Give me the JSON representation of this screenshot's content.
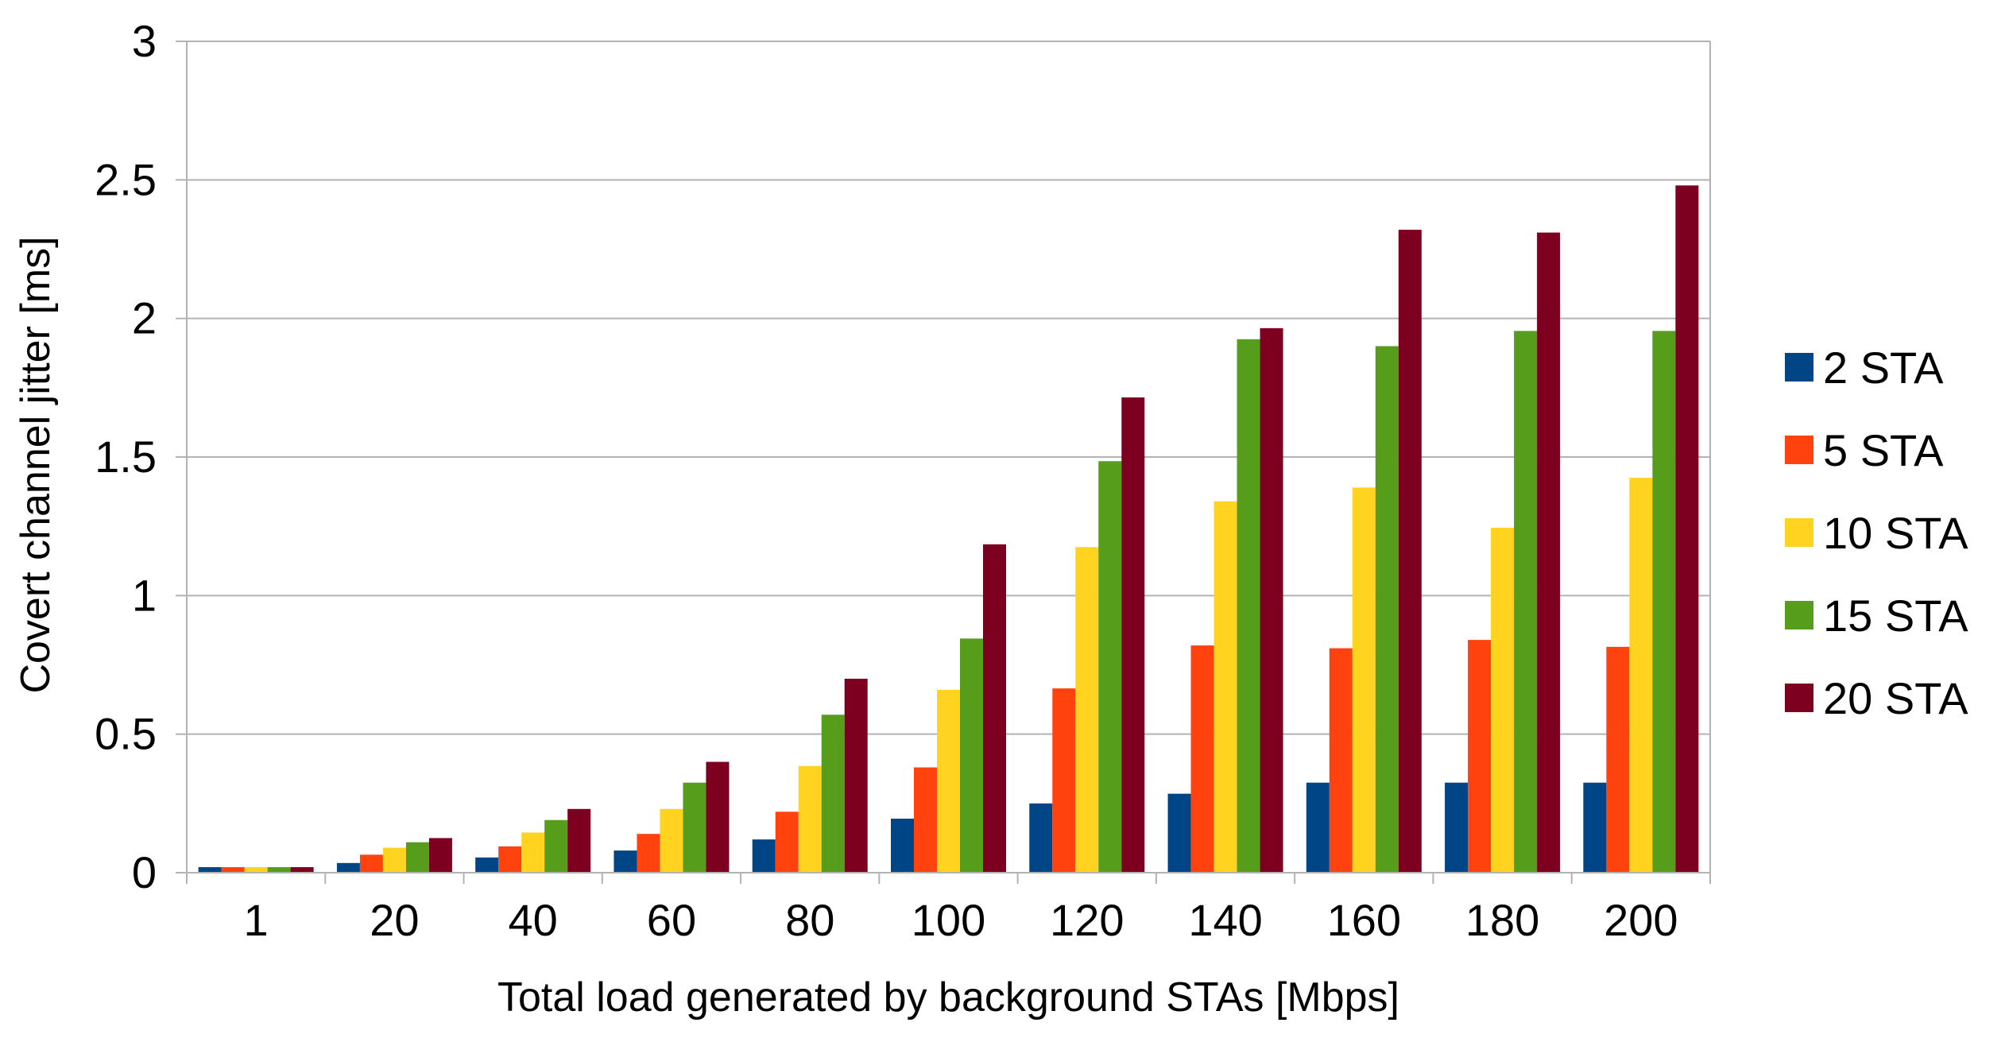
{
  "chart_data": {
    "type": "bar",
    "title": "",
    "xlabel": "Total load generated by background STAs [Mbps]",
    "ylabel": "Covert channel jitter [ms]",
    "ylim": [
      0,
      3
    ],
    "yticks": [
      "0",
      "0.5",
      "1",
      "1.5",
      "2",
      "2.5",
      "3"
    ],
    "grid": "horizontal",
    "legend_position": "right",
    "categories": [
      "1",
      "20",
      "40",
      "60",
      "80",
      "100",
      "120",
      "140",
      "160",
      "180",
      "200"
    ],
    "series": [
      {
        "name": "2 STA",
        "color": "#004586",
        "values": [
          0.02,
          0.035,
          0.055,
          0.08,
          0.12,
          0.195,
          0.25,
          0.285,
          0.325,
          0.325,
          0.325
        ]
      },
      {
        "name": "5 STA",
        "color": "#ff420e",
        "values": [
          0.02,
          0.065,
          0.095,
          0.14,
          0.22,
          0.38,
          0.665,
          0.82,
          0.81,
          0.84,
          0.815
        ]
      },
      {
        "name": "10 STA",
        "color": "#ffd320",
        "values": [
          0.02,
          0.09,
          0.145,
          0.23,
          0.385,
          0.66,
          1.175,
          1.34,
          1.39,
          1.245,
          1.425
        ]
      },
      {
        "name": "15 STA",
        "color": "#579d1c",
        "values": [
          0.02,
          0.11,
          0.19,
          0.325,
          0.57,
          0.845,
          1.485,
          1.925,
          1.9,
          1.955,
          1.955
        ]
      },
      {
        "name": "20 STA",
        "color": "#7e0021",
        "values": [
          0.02,
          0.125,
          0.23,
          0.4,
          0.7,
          1.185,
          1.715,
          1.965,
          2.32,
          2.31,
          2.48
        ]
      }
    ]
  }
}
